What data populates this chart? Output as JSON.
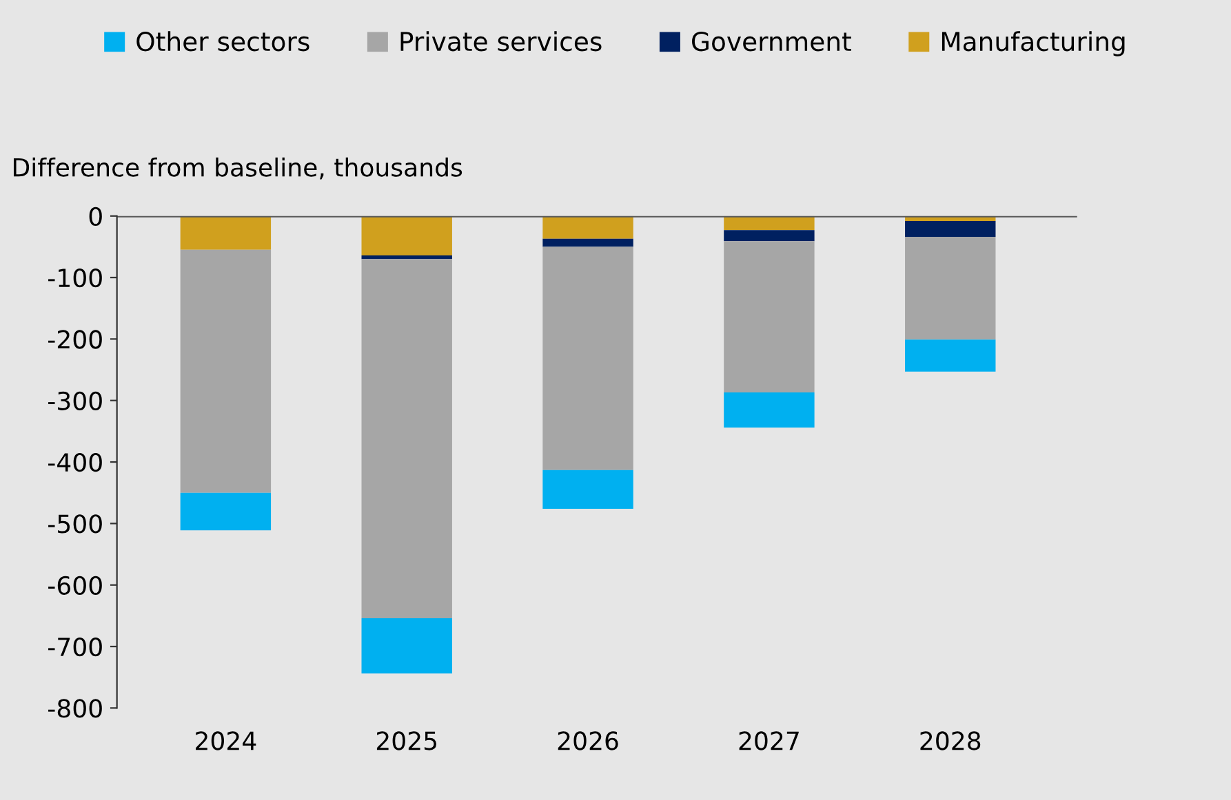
{
  "chart_data": {
    "type": "bar",
    "stacked": true,
    "ylabel": "Difference from baseline, thousands",
    "categories": [
      "2024",
      "2025",
      "2026",
      "2027",
      "2028"
    ],
    "series": [
      {
        "name": "Manufacturing",
        "color": "#d0a01e",
        "values": [
          -55,
          -64,
          -37,
          -23,
          -8
        ]
      },
      {
        "name": "Government",
        "color": "#002060",
        "values": [
          0,
          -6,
          -13,
          -18,
          -26
        ]
      },
      {
        "name": "Private services",
        "color": "#a6a6a6",
        "values": [
          -395,
          -584,
          -363,
          -246,
          -167
        ]
      },
      {
        "name": "Other sectors",
        "color": "#00b0f0",
        "values": [
          -61,
          -90,
          -63,
          -57,
          -52
        ]
      }
    ],
    "ylim": [
      -800,
      0
    ],
    "yticks": [
      -800,
      -700,
      -600,
      -500,
      -400,
      -300,
      -200,
      -100,
      0
    ],
    "grid": false,
    "legend": "top"
  }
}
